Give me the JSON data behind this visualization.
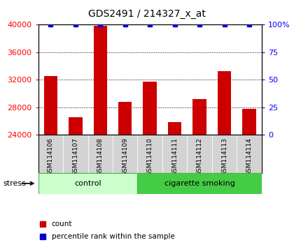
{
  "title": "GDS2491 / 214327_x_at",
  "samples": [
    "GSM114106",
    "GSM114107",
    "GSM114108",
    "GSM114109",
    "GSM114110",
    "GSM114111",
    "GSM114112",
    "GSM114113",
    "GSM114114"
  ],
  "counts": [
    32500,
    26500,
    39800,
    28800,
    31700,
    25800,
    29200,
    33200,
    27800
  ],
  "percentile_ranks": [
    100,
    100,
    100,
    100,
    100,
    100,
    100,
    100,
    100
  ],
  "groups": [
    {
      "label": "control",
      "start": 0,
      "end": 4,
      "color": "#ccffcc",
      "edge": "#44bb44"
    },
    {
      "label": "cigarette smoking",
      "start": 4,
      "end": 9,
      "color": "#44cc44",
      "edge": "#44bb44"
    }
  ],
  "bar_color": "#cc0000",
  "dot_color": "#0000cc",
  "ylim_left": [
    24000,
    40000
  ],
  "ylim_right": [
    0,
    100
  ],
  "yticks_left": [
    24000,
    28000,
    32000,
    36000,
    40000
  ],
  "yticks_right": [
    0,
    25,
    50,
    75,
    100
  ],
  "right_tick_labels": [
    "0",
    "25",
    "50",
    "75",
    "100%"
  ],
  "legend_count_label": "count",
  "legend_pct_label": "percentile rank within the sample",
  "stress_label": "stress",
  "bar_width": 0.55
}
